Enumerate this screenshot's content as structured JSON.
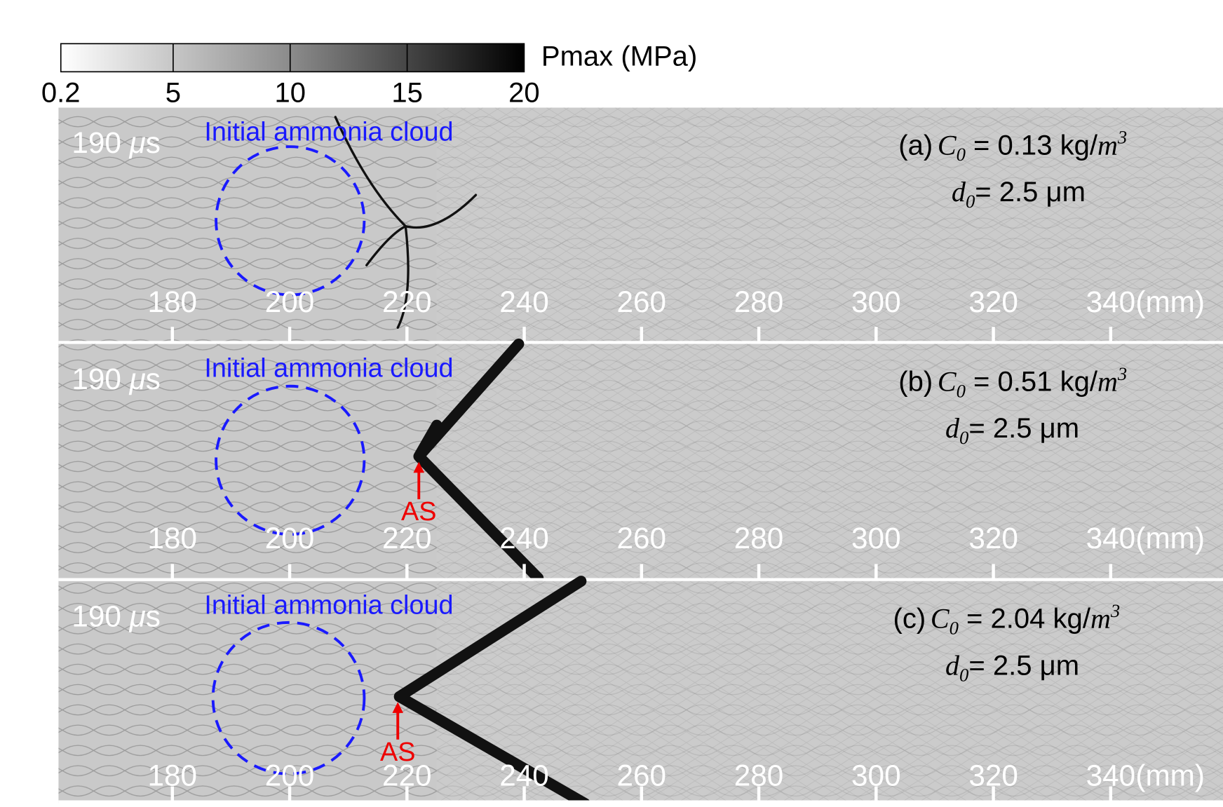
{
  "colorbar": {
    "label": "Pmax (MPa)",
    "ticks": [
      0.2,
      5,
      10,
      15,
      20
    ]
  },
  "axis": {
    "ticks": [
      180,
      200,
      220,
      240,
      260,
      280,
      300,
      320,
      340
    ],
    "unit": "(mm)"
  },
  "panels": [
    {
      "time": "190 ",
      "time_mu": "μ",
      "time_unit": "s",
      "cloud_label": "Initial ammonia cloud",
      "tag": "(a)",
      "c_symbol": "C",
      "c_sub": "0",
      "c_value": " = 0.13 kg/",
      "c_unit": "m",
      "c_sup": "3",
      "d_symbol": "d",
      "d_sub": "0",
      "d_value": "= 2.5 μm"
    },
    {
      "time": "190 ",
      "time_mu": "μ",
      "time_unit": "s",
      "cloud_label": "Initial ammonia cloud",
      "tag": "(b)",
      "c_symbol": "C",
      "c_sub": "0",
      "c_value": " = 0.51 kg/",
      "c_unit": "m",
      "c_sup": "3",
      "d_symbol": "d",
      "d_sub": "0",
      "d_value": "= 2.5 μm",
      "marker": "AS"
    },
    {
      "time": "190 ",
      "time_mu": "μ",
      "time_unit": "s",
      "cloud_label": "Initial ammonia cloud",
      "tag": "(c)",
      "c_symbol": "C",
      "c_sub": "0",
      "c_value": " = 2.04 kg/",
      "c_unit": "m",
      "c_sup": "3",
      "d_symbol": "d",
      "d_sub": "0",
      "d_value": "= 2.5 μm",
      "marker": "AS"
    }
  ]
}
